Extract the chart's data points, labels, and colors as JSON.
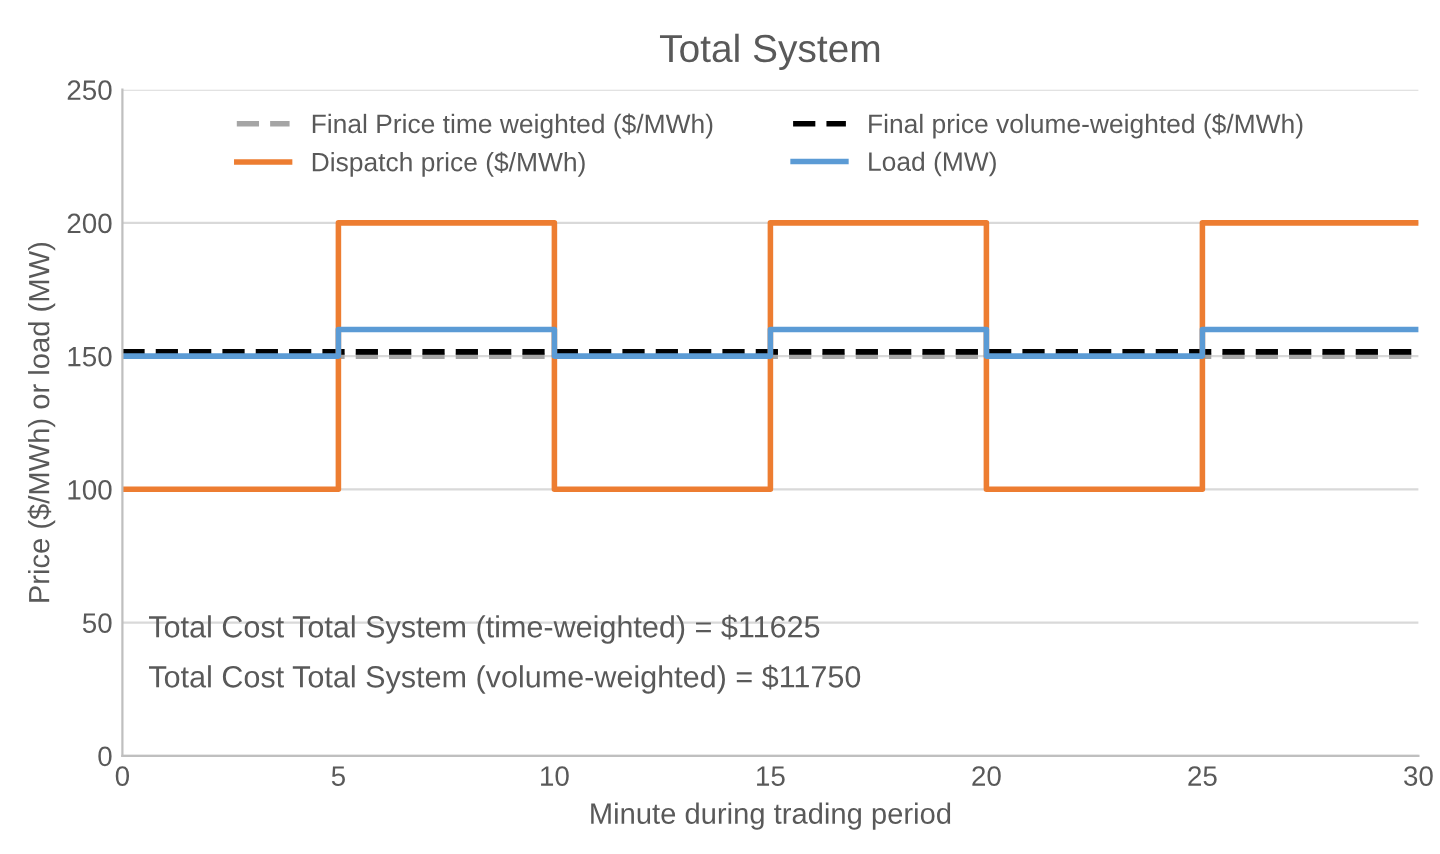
{
  "chart_data": {
    "type": "step",
    "title": "Total System",
    "xlabel": "Minute during trading period",
    "ylabel": "Price ($/MWh) or load (MW)",
    "x": [
      0,
      5,
      10,
      15,
      20,
      25,
      30
    ],
    "series": [
      {
        "name": "Final Price time weighted ($/MWh)",
        "type": "line",
        "line_style": "dashed",
        "color": "#a5a5a5",
        "values": [
          150,
          150,
          150,
          150,
          150,
          150,
          150
        ]
      },
      {
        "name": "Final price volume-weighted ($/MWh)",
        "type": "line",
        "line_style": "dashed",
        "color": "#000000",
        "values": [
          151.6,
          151.6,
          151.6,
          151.6,
          151.6,
          151.6,
          151.6
        ]
      },
      {
        "name": "Dispatch price ($/MWh)",
        "line_style": "solid",
        "color": "#ed7d31",
        "values": [
          100,
          200,
          100,
          200,
          100,
          200,
          200
        ]
      },
      {
        "name": "Load (MW)",
        "line_style": "solid",
        "color": "#5b9bd5",
        "values": [
          150,
          160,
          150,
          160,
          150,
          160,
          160
        ]
      }
    ],
    "xlim": [
      0,
      30
    ],
    "xticks": [
      0,
      5,
      10,
      15,
      20,
      25,
      30
    ],
    "ylim": [
      0,
      250
    ],
    "yticks": [
      0,
      50,
      100,
      150,
      200,
      250
    ],
    "grid": "y",
    "legend": "top",
    "marker": "none",
    "annotations": [
      "Total Cost Total System (time-weighted) = $11625",
      "Total Cost Total System (volume-weighted) = $11750"
    ]
  }
}
